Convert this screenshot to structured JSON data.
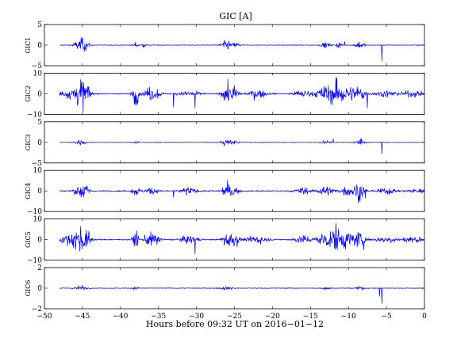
{
  "chart_data": {
    "type": "line",
    "title": "GIC [A]",
    "xlabel": "Hours before  09:32 UT on 2016−01−12",
    "xlim": [
      -50,
      0
    ],
    "x_ticks": [
      "−50",
      "−45",
      "−40",
      "−35",
      "−30",
      "−25",
      "−20",
      "−15",
      "−10",
      "−5",
      "0"
    ],
    "x_tick_values": [
      -50,
      -45,
      -40,
      -35,
      -30,
      -25,
      -20,
      -15,
      -10,
      -5,
      0
    ],
    "data_x_range": [
      -48,
      0
    ],
    "line_color": "#0000ff",
    "grid": false,
    "panels": [
      {
        "ylabel": "GIC1",
        "ylim": [
          -5,
          5
        ],
        "y_ticks": [
          "5",
          "0",
          "−5"
        ],
        "y_tick_values": [
          5,
          0,
          -5
        ],
        "noise": 0.06,
        "bursts": [
          [
            -45.3,
            0.8,
            1.1
          ],
          [
            -44.6,
            0.5,
            0.7
          ],
          [
            -38.0,
            0.3,
            0.6
          ],
          [
            -37.0,
            0.4,
            0.4
          ],
          [
            -26.0,
            0.8,
            0.9
          ],
          [
            -24.6,
            0.4,
            0.5
          ],
          [
            -13.0,
            0.6,
            0.5
          ],
          [
            -11.2,
            0.4,
            0.6
          ],
          [
            -8.5,
            0.6,
            0.8
          ]
        ],
        "spikes": [
          [
            -5.6,
            -3.9
          ],
          [
            -10.5,
            0.9
          ],
          [
            -45.0,
            1.6
          ]
        ]
      },
      {
        "ylabel": "GIC2",
        "ylim": [
          -10,
          10
        ],
        "y_ticks": [
          "10",
          "0",
          "−10"
        ],
        "y_tick_values": [
          10,
          0,
          -10
        ],
        "noise": 0.2,
        "bursts": [
          [
            -47.0,
            1.5,
            1.5
          ],
          [
            -45.3,
            1.0,
            4.0
          ],
          [
            -44.6,
            0.6,
            3.0
          ],
          [
            -38.0,
            0.4,
            4.5
          ],
          [
            -36.3,
            0.6,
            2.5
          ],
          [
            -35.3,
            0.6,
            2.0
          ],
          [
            -31.0,
            1.2,
            1.5
          ],
          [
            -26.0,
            0.6,
            3.5
          ],
          [
            -25.0,
            0.6,
            3.0
          ],
          [
            -22.0,
            1.2,
            1.8
          ],
          [
            -16.0,
            1.2,
            1.5
          ],
          [
            -13.0,
            1.2,
            3.0
          ],
          [
            -11.5,
            1.0,
            3.0
          ],
          [
            -10.2,
            1.0,
            3.0
          ],
          [
            -8.6,
            0.8,
            3.5
          ],
          [
            -5.0,
            1.5,
            1.3
          ],
          [
            -1.5,
            1.5,
            1.2
          ]
        ],
        "spikes": [
          [
            -11.6,
            8.0
          ],
          [
            -7.5,
            -7.0
          ],
          [
            -45.2,
            7.0
          ],
          [
            -30.2,
            -7.0
          ],
          [
            -33.0,
            -6.5
          ],
          [
            -38.1,
            -5.5
          ]
        ]
      },
      {
        "ylabel": "GIC3",
        "ylim": [
          -5,
          5
        ],
        "y_ticks": [
          "5",
          "0",
          "−5"
        ],
        "y_tick_values": [
          5,
          0,
          -5
        ],
        "noise": 0.06,
        "bursts": [
          [
            -45.3,
            0.8,
            0.5
          ],
          [
            -38.0,
            0.4,
            0.3
          ],
          [
            -26.0,
            0.8,
            0.6
          ],
          [
            -24.7,
            0.4,
            0.3
          ],
          [
            -13.0,
            0.6,
            0.3
          ],
          [
            -8.5,
            0.6,
            0.5
          ]
        ],
        "spikes": [
          [
            -5.6,
            -2.8
          ],
          [
            -12.0,
            0.9
          ],
          [
            -8.4,
            1.0
          ]
        ]
      },
      {
        "ylabel": "GIC4",
        "ylim": [
          -10,
          10
        ],
        "y_ticks": [
          "10",
          "0",
          "−10"
        ],
        "y_tick_values": [
          10,
          0,
          -10
        ],
        "noise": 0.2,
        "bursts": [
          [
            -45.3,
            0.8,
            2.5
          ],
          [
            -44.6,
            0.6,
            2.0
          ],
          [
            -38.0,
            0.5,
            2.0
          ],
          [
            -36.0,
            0.8,
            1.5
          ],
          [
            -31.0,
            1.0,
            1.5
          ],
          [
            -26.0,
            0.6,
            3.0
          ],
          [
            -25.0,
            0.6,
            2.0
          ],
          [
            -16.0,
            1.0,
            1.5
          ],
          [
            -13.0,
            1.0,
            2.0
          ],
          [
            -10.0,
            1.0,
            2.0
          ],
          [
            -8.5,
            0.6,
            3.5
          ],
          [
            -5.0,
            1.2,
            1.2
          ],
          [
            -1.0,
            1.2,
            1.0
          ]
        ],
        "spikes": [
          [
            -8.7,
            -6.0
          ],
          [
            -7.8,
            -3.5
          ],
          [
            -26.0,
            -4.0
          ],
          [
            -33.0,
            -3.0
          ]
        ]
      },
      {
        "ylabel": "GIC5",
        "ylim": [
          -10,
          10
        ],
        "y_ticks": [
          "10",
          "0",
          "−10"
        ],
        "y_tick_values": [
          10,
          0,
          -10
        ],
        "noise": 0.2,
        "bursts": [
          [
            -47.0,
            1.5,
            1.5
          ],
          [
            -45.3,
            1.0,
            4.0
          ],
          [
            -44.6,
            0.6,
            3.0
          ],
          [
            -38.0,
            0.4,
            4.0
          ],
          [
            -36.3,
            0.6,
            2.5
          ],
          [
            -35.3,
            0.6,
            2.0
          ],
          [
            -31.0,
            1.2,
            1.5
          ],
          [
            -26.0,
            0.6,
            3.5
          ],
          [
            -25.0,
            0.6,
            3.0
          ],
          [
            -22.0,
            1.2,
            1.8
          ],
          [
            -16.0,
            1.2,
            1.5
          ],
          [
            -13.0,
            1.2,
            3.0
          ],
          [
            -11.5,
            1.0,
            3.0
          ],
          [
            -10.2,
            1.0,
            3.0
          ],
          [
            -8.6,
            0.8,
            3.0
          ],
          [
            -5.0,
            1.5,
            1.3
          ],
          [
            -1.5,
            1.5,
            1.2
          ]
        ],
        "spikes": [
          [
            -11.6,
            8.0
          ],
          [
            -45.2,
            6.5
          ],
          [
            -30.2,
            -7.0
          ],
          [
            -8.0,
            -5.0
          ]
        ]
      },
      {
        "ylabel": "GIC6",
        "ylim": [
          -2,
          2
        ],
        "y_ticks": [
          "2",
          "0",
          "−2"
        ],
        "y_tick_values": [
          2,
          0,
          -2
        ],
        "noise": 0.025,
        "bursts": [
          [
            -45.3,
            0.8,
            0.15
          ],
          [
            -38.0,
            0.4,
            0.1
          ],
          [
            -26.0,
            0.8,
            0.12
          ],
          [
            -13.0,
            0.6,
            0.1
          ],
          [
            -8.5,
            0.6,
            0.12
          ]
        ],
        "spikes": [
          [
            -5.6,
            -1.5
          ],
          [
            -5.9,
            -0.8
          ],
          [
            -45.0,
            0.3
          ]
        ]
      }
    ]
  }
}
